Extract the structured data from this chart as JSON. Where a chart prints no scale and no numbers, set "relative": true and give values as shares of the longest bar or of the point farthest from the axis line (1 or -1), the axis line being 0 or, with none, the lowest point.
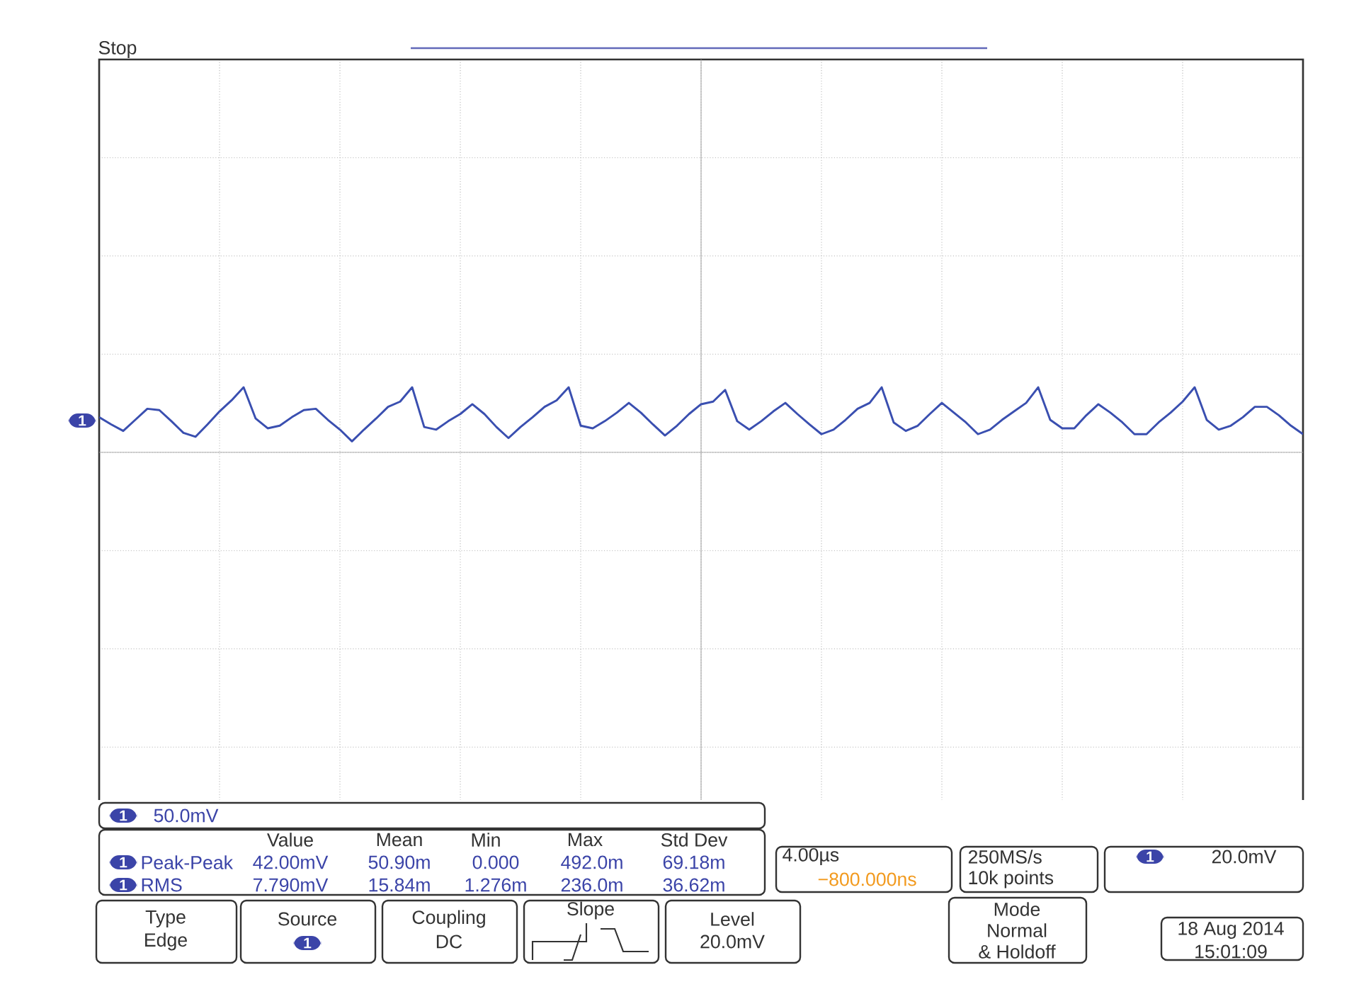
{
  "chart_data": {
    "type": "line",
    "relative": true,
    "grid": true,
    "categories": [
      null,
      null,
      null,
      null,
      null,
      null,
      null,
      null,
      null,
      null,
      null,
      null,
      null,
      null,
      null,
      null,
      null,
      null,
      null,
      null,
      null,
      null,
      null,
      null,
      null,
      null,
      null,
      null,
      null,
      null,
      null,
      null,
      null,
      null,
      null,
      null,
      null,
      null,
      null,
      null,
      null,
      null,
      null,
      null,
      null,
      null,
      null,
      null,
      null,
      null,
      null,
      null,
      null,
      null,
      null,
      null,
      null,
      null,
      null,
      null,
      null,
      null,
      null,
      null,
      null,
      null,
      null,
      null,
      null,
      null,
      null,
      null,
      null,
      null,
      null,
      null,
      null,
      null,
      null,
      null,
      null,
      null,
      null,
      null,
      null,
      null,
      null,
      null,
      null,
      null,
      null,
      null,
      null,
      null,
      null,
      null,
      null,
      null,
      null,
      null,
      null
    ],
    "series": [
      {
        "color": "#3a4fb0",
        "values": [
          0.54,
          0.43,
          0.33,
          0.5,
          0.67,
          0.65,
          0.48,
          0.3,
          0.24,
          0.43,
          0.63,
          0.8,
          1,
          0.52,
          0.37,
          0.41,
          0.54,
          0.65,
          0.67,
          0.5,
          0.35,
          0.17,
          0.35,
          0.52,
          0.7,
          0.78,
          1,
          0.39,
          0.35,
          0.48,
          0.59,
          0.74,
          0.59,
          0.39,
          0.22,
          0.39,
          0.54,
          0.7,
          0.8,
          1,
          0.41,
          0.37,
          0.48,
          0.61,
          0.76,
          0.61,
          0.43,
          0.26,
          0.41,
          0.59,
          0.74,
          0.78,
          0.96,
          0.48,
          0.35,
          0.48,
          0.63,
          0.76,
          0.59,
          0.43,
          0.28,
          0.35,
          0.5,
          0.67,
          0.76,
          1,
          0.46,
          0.33,
          0.41,
          0.59,
          0.76,
          0.61,
          0.46,
          0.28,
          0.35,
          0.5,
          0.63,
          0.76,
          1,
          0.5,
          0.37,
          0.37,
          0.57,
          0.74,
          0.61,
          0.46,
          0.28,
          0.28,
          0.46,
          0.61,
          0.78,
          1,
          0.5,
          0.35,
          0.41,
          0.54,
          0.7,
          0.7,
          0.57,
          0.41,
          0.28
        ]
      }
    ],
    "annotations": [
      "Stop",
      "1",
      "1",
      "50.0mV",
      "Value",
      "Mean",
      "Min",
      "Max",
      "Std Dev",
      "1",
      "Peak-Peak",
      "42.00mV",
      "50.90m",
      "0.000",
      "492.0m",
      "69.18m",
      "1",
      "RMS",
      "7.790mV",
      "15.84m",
      "1.276m",
      "236.0m",
      "36.62m",
      "4.00µs",
      "−800.000ns",
      "250MS/s",
      "10k points",
      "1",
      "20.0mV",
      "Type",
      "Edge",
      "Source",
      "1",
      "Coupling",
      "DC",
      "Slope",
      "Level",
      "20.0mV",
      "Mode",
      "Normal",
      "& Holdoff",
      "18 Aug 2014",
      "15:01:09"
    ]
  }
}
